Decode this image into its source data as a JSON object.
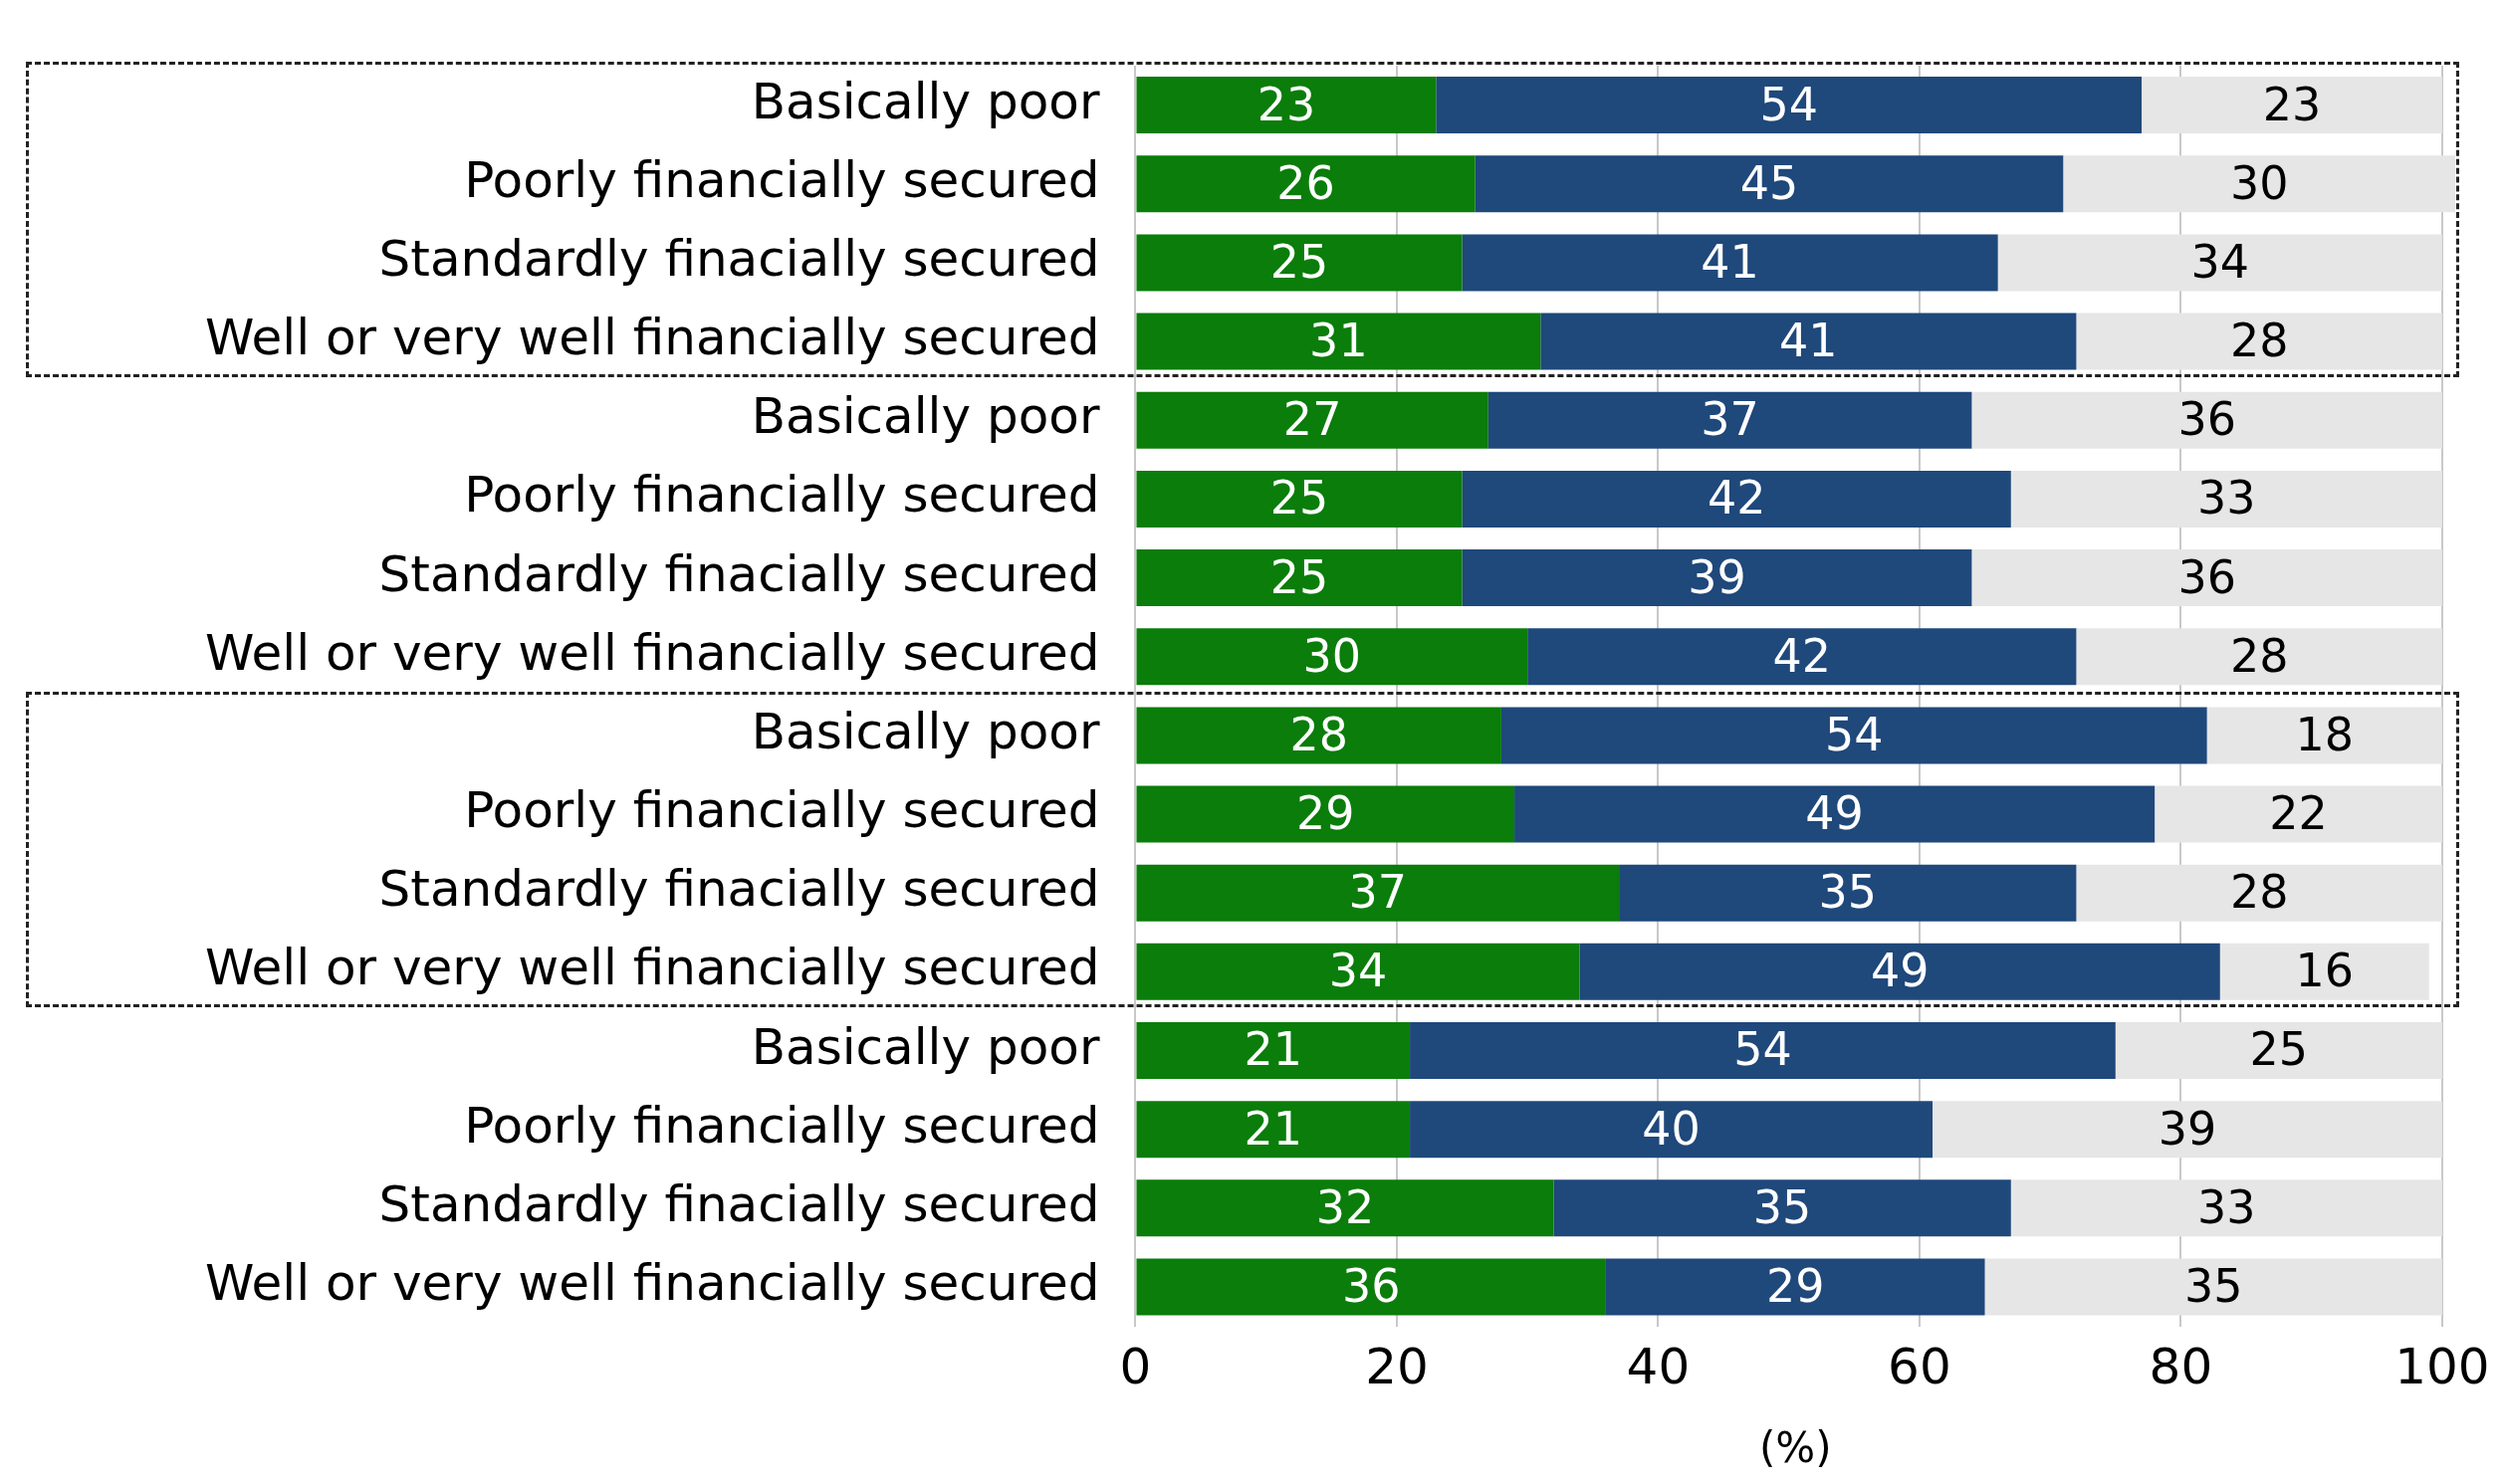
{
  "chart_data": {
    "type": "bar",
    "orientation": "horizontal",
    "stacked": true,
    "xlabel": "(%)",
    "categories": [
      "Basically poor",
      "Poorly financially secured",
      "Standardly finacially secured",
      "Well or very well financially secured",
      "Basically poor",
      "Poorly financially secured",
      "Standardly finacially secured",
      "Well or very well financially secured",
      "Basically poor",
      "Poorly financially secured",
      "Standardly finacially secured",
      "Well or very well financially secured",
      "Basically poor",
      "Poorly financially secured",
      "Standardly finacially secured",
      "Well or very well financially secured"
    ],
    "series": [
      {
        "color": "#0a7d0a",
        "values": [
          23,
          26,
          25,
          31,
          27,
          25,
          25,
          30,
          28,
          29,
          37,
          34,
          21,
          21,
          32,
          36
        ]
      },
      {
        "color": "#1f487b",
        "values": [
          54,
          45,
          41,
          41,
          37,
          42,
          39,
          42,
          54,
          49,
          35,
          49,
          54,
          40,
          35,
          29
        ]
      },
      {
        "color": "#e6e6e6",
        "values": [
          23,
          30,
          34,
          28,
          36,
          33,
          36,
          28,
          18,
          22,
          28,
          16,
          25,
          39,
          33,
          35
        ]
      }
    ],
    "xlim": [
      0,
      101
    ],
    "xticks": [
      0,
      20,
      40,
      60,
      80,
      100
    ],
    "grid": "x",
    "legend": false,
    "data_labels": true
  }
}
